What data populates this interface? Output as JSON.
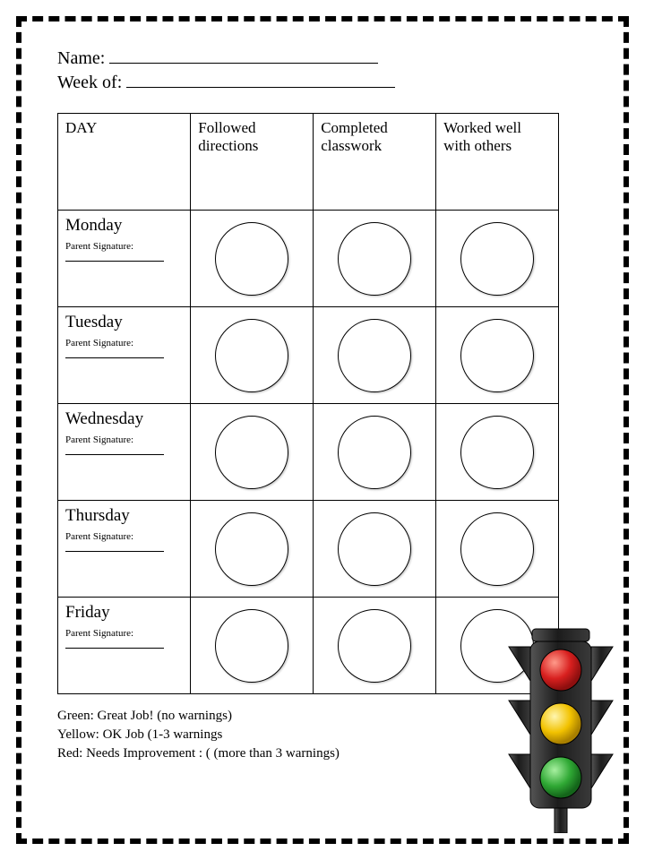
{
  "header": {
    "name_label": "Name:",
    "week_label": "Week of:"
  },
  "table": {
    "columns": [
      "DAY",
      "Followed directions",
      "Completed classwork",
      "Worked well with others"
    ],
    "rows": [
      {
        "day": "Monday",
        "sig_label": "Parent Signature:"
      },
      {
        "day": "Tuesday",
        "sig_label": "Parent Signature:"
      },
      {
        "day": "Wednesday",
        "sig_label": "Parent Signature:"
      },
      {
        "day": "Thursday",
        "sig_label": "Parent Signature:"
      },
      {
        "day": "Friday",
        "sig_label": "Parent Signature:"
      }
    ],
    "circle_border_color": "#000000"
  },
  "legend": {
    "green": "Green: Great Job! (no warnings)",
    "yellow": "Yellow: OK Job (1-3 warnings",
    "red": "Red: Needs Improvement : ( (more than 3 warnings)"
  },
  "traffic_light": {
    "body_color": "#2b2b2b",
    "red": "#d8201f",
    "yellow": "#f2c200",
    "green": "#2fa834",
    "highlight": "#ffffff"
  }
}
